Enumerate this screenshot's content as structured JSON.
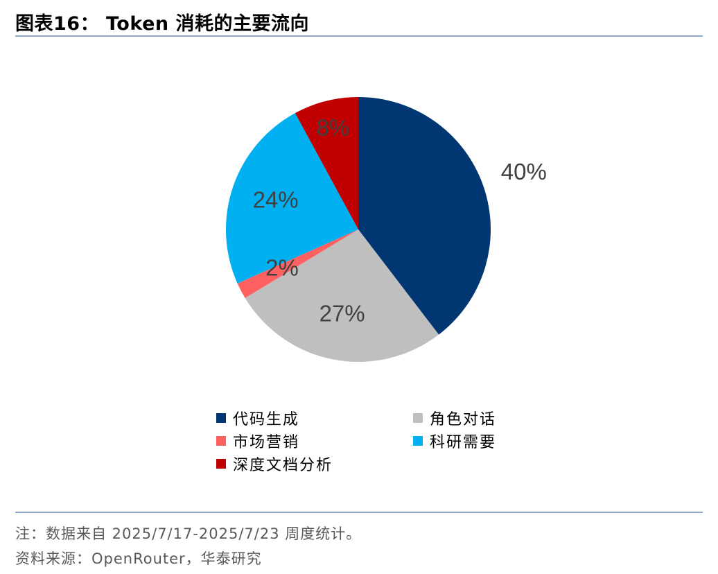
{
  "title": "图表16：  Token 消耗的主要流向",
  "note": "注：数据来自 2025/7/17-2025/7/23 周度统计。",
  "source": "资料来源：OpenRouter，华泰研究",
  "chart_data": {
    "type": "pie",
    "title": "图表16：  Token 消耗的主要流向",
    "legend_position": "bottom",
    "slices": [
      {
        "name": "代码生成",
        "value": 40,
        "label": "40%",
        "color": "#003672"
      },
      {
        "name": "角色对话",
        "value": 27,
        "label": "27%",
        "color": "#BFBFBF"
      },
      {
        "name": "市场营销",
        "value": 2,
        "label": "2%",
        "color": "#FF6161"
      },
      {
        "name": "科研需要",
        "value": 24,
        "label": "24%",
        "color": "#00B0F0"
      },
      {
        "name": "深度文档分析",
        "value": 8,
        "label": "8%",
        "color": "#C00000"
      }
    ]
  }
}
